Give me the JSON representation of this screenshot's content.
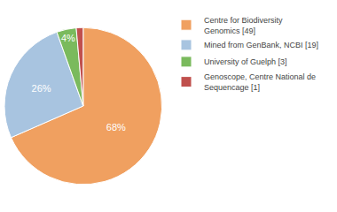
{
  "chart_data": {
    "type": "pie",
    "categories": [
      "Centre for Biodiversity\nGenomics [49]",
      "Mined from GenBank, NCBI [19]",
      "University of Guelph [3]",
      "Genoscope, Centre National de\nSequencage [1]"
    ],
    "values": [
      68,
      26,
      4,
      1.4
    ],
    "value_labels": [
      "68%",
      "26%",
      "4%",
      null
    ],
    "colors": [
      "#f0a060",
      "#a8c4e0",
      "#7aba5d",
      "#c0504d"
    ],
    "data_labels": true,
    "legend": "right"
  }
}
